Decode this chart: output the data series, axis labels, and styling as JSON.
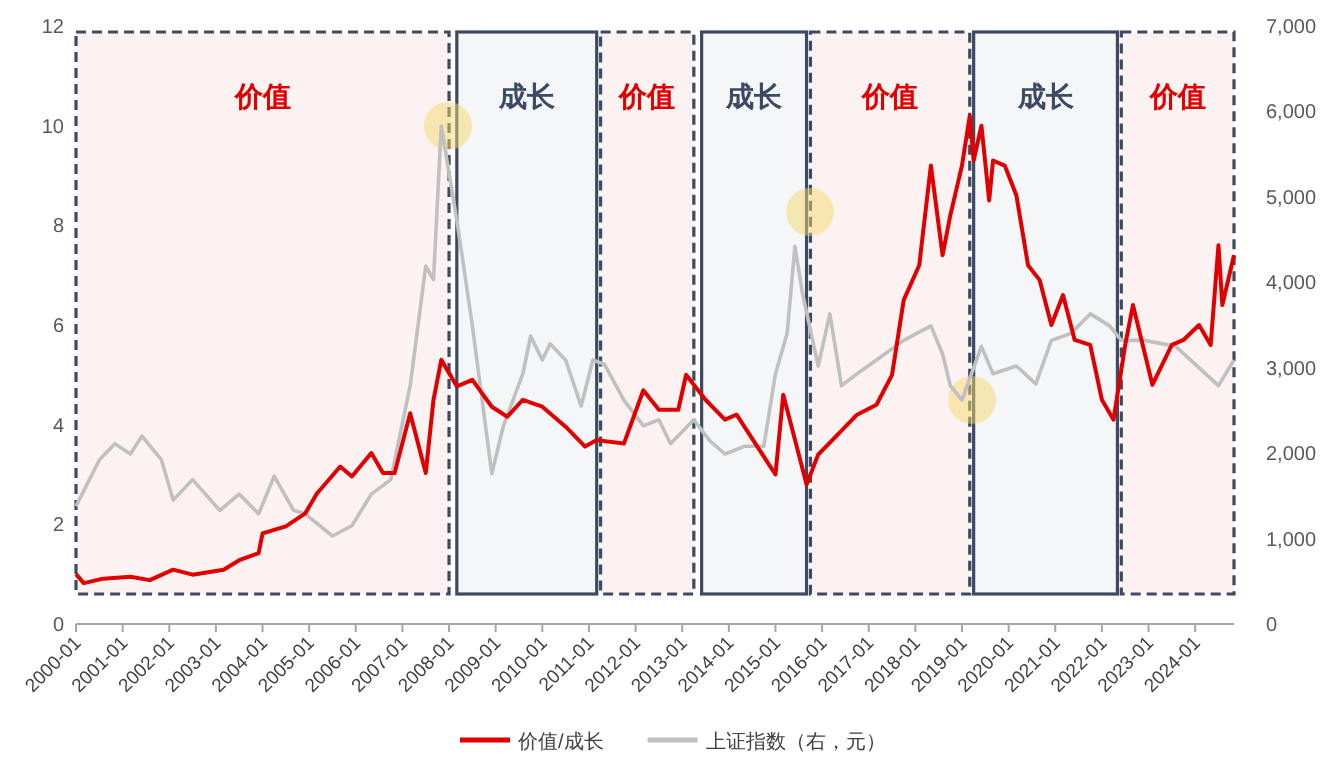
{
  "chart_data": {
    "type": "line",
    "xlim": [
      "2000-01",
      "2024-11"
    ],
    "xticks": [
      "2000-01",
      "2001-01",
      "2002-01",
      "2003-01",
      "2004-01",
      "2005-01",
      "2006-01",
      "2007-01",
      "2008-01",
      "2009-01",
      "2010-01",
      "2011-01",
      "2012-01",
      "2013-01",
      "2014-01",
      "2015-01",
      "2016-01",
      "2017-01",
      "2018-01",
      "2019-01",
      "2020-01",
      "2021-01",
      "2022-01",
      "2023-01",
      "2024-01"
    ],
    "ylim": [
      0,
      12
    ],
    "yticks": [
      0,
      2,
      4,
      6,
      8,
      10,
      12
    ],
    "y2lim": [
      0,
      7000
    ],
    "y2ticks": [
      0,
      {
        "value": 1000,
        "label": "1,000"
      },
      {
        "value": 2000,
        "label": "2,000"
      },
      {
        "value": 3000,
        "label": "3,000"
      },
      {
        "value": 4000,
        "label": "4,000"
      },
      {
        "value": 5000,
        "label": "5,000"
      },
      {
        "value": 6000,
        "label": "6,000"
      },
      {
        "value": 7000,
        "label": "7,000"
      }
    ],
    "grid": false,
    "legend": "bottom",
    "series": [
      {
        "name": "上证指数（右，元）",
        "color": "#c0c0c0",
        "axis": "y2",
        "x": [
          "2000-01",
          "2000-07",
          "2000-11",
          "2001-03",
          "2001-06",
          "2001-11",
          "2002-02",
          "2002-07",
          "2003-02",
          "2003-07",
          "2003-12",
          "2004-04",
          "2004-09",
          "2004-12",
          "2005-07",
          "2005-12",
          "2006-05",
          "2006-10",
          "2007-03",
          "2007-07",
          "2007-09",
          "2007-11",
          "2008-03",
          "2008-07",
          "2008-12",
          "2009-03",
          "2009-08",
          "2009-10",
          "2010-01",
          "2010-03",
          "2010-07",
          "2010-11",
          "2011-02",
          "2011-05",
          "2011-10",
          "2012-03",
          "2012-07",
          "2012-10",
          "2013-04",
          "2013-08",
          "2013-12",
          "2014-05",
          "2014-10",
          "2015-01",
          "2015-04",
          "2015-06",
          "2015-08",
          "2015-12",
          "2016-03",
          "2016-06",
          "2016-10",
          "2017-03",
          "2017-10",
          "2018-05",
          "2018-08",
          "2018-10",
          "2019-01",
          "2019-06",
          "2019-09",
          "2020-03",
          "2020-08",
          "2020-12",
          "2021-05",
          "2021-10",
          "2022-03",
          "2022-06",
          "2022-12",
          "2023-08",
          "2024-07",
          "2024-11"
        ],
        "values": [
          1380,
          1920,
          2110,
          1990,
          2200,
          1920,
          1450,
          1690,
          1330,
          1520,
          1290,
          1730,
          1330,
          1290,
          1030,
          1150,
          1520,
          1690,
          2790,
          4190,
          4030,
          5830,
          4730,
          3490,
          1760,
          2320,
          2930,
          3370,
          3090,
          3280,
          3090,
          2550,
          3090,
          3040,
          2620,
          2320,
          2390,
          2110,
          2390,
          2150,
          1990,
          2080,
          2080,
          2930,
          3400,
          4420,
          3860,
          3020,
          3630,
          2790,
          2930,
          3090,
          3320,
          3490,
          3160,
          2790,
          2620,
          3250,
          2930,
          3020,
          2810,
          3320,
          3400,
          3630,
          3490,
          3320,
          3320,
          3250,
          2790,
          3090
        ]
      },
      {
        "name": "价值/成长",
        "color": "#e00000",
        "x": [
          "2000-01",
          "2000-03",
          "2000-08",
          "2001-03",
          "2001-08",
          "2002-02",
          "2002-07",
          "2003-03",
          "2003-07",
          "2003-12",
          "2004-01",
          "2004-07",
          "2004-12",
          "2005-03",
          "2005-06",
          "2005-09",
          "2005-12",
          "2006-05",
          "2006-08",
          "2006-11",
          "2007-03",
          "2007-07",
          "2007-09",
          "2007-11",
          "2008-03",
          "2008-07",
          "2008-12",
          "2009-04",
          "2009-08",
          "2010-01",
          "2010-07",
          "2010-12",
          "2011-03",
          "2011-10",
          "2012-03",
          "2012-07",
          "2012-12",
          "2013-02",
          "2013-07",
          "2013-12",
          "2014-03",
          "2014-08",
          "2015-01",
          "2015-03",
          "2015-06",
          "2015-09",
          "2015-12",
          "2016-05",
          "2016-10",
          "2017-03",
          "2017-07",
          "2017-10",
          "2018-02",
          "2018-05",
          "2018-08",
          "2018-10",
          "2019-01",
          "2019-03",
          "2019-04",
          "2019-06",
          "2019-08",
          "2019-09",
          "2019-12",
          "2020-03",
          "2020-06",
          "2020-09",
          "2020-12",
          "2021-03",
          "2021-06",
          "2021-10",
          "2022-01",
          "2022-04",
          "2022-07",
          "2022-09",
          "2023-02",
          "2023-07",
          "2023-10",
          "2024-02",
          "2024-05",
          "2024-07",
          "2024-08",
          "2024-11"
        ],
        "values": [
          1.0,
          0.82,
          0.91,
          0.95,
          0.88,
          1.09,
          0.99,
          1.09,
          1.28,
          1.42,
          1.82,
          1.96,
          2.22,
          2.62,
          2.89,
          3.16,
          2.96,
          3.43,
          3.03,
          3.03,
          4.23,
          3.03,
          4.5,
          5.3,
          4.77,
          4.9,
          4.36,
          4.16,
          4.5,
          4.36,
          3.96,
          3.56,
          3.69,
          3.62,
          4.69,
          4.3,
          4.3,
          5.0,
          4.5,
          4.1,
          4.2,
          3.6,
          3.0,
          4.6,
          3.7,
          2.8,
          3.4,
          3.8,
          4.2,
          4.4,
          5.0,
          6.5,
          7.2,
          9.2,
          7.4,
          8.2,
          9.2,
          10.2,
          9.3,
          10.0,
          8.5,
          9.3,
          9.2,
          8.6,
          7.2,
          6.9,
          6.0,
          6.6,
          5.7,
          5.6,
          4.5,
          4.1,
          5.6,
          6.4,
          4.8,
          5.6,
          5.7,
          6.0,
          5.6,
          7.6,
          6.4,
          7.4
        ]
      }
    ],
    "bands": [
      {
        "axis": "x",
        "from": "2000-01",
        "to": "2008-01",
        "label": "价值",
        "color": "#e00000"
      },
      {
        "axis": "x",
        "from": "2008-03",
        "to": "2011-03",
        "label": "成长",
        "color": "#3d4a63"
      },
      {
        "axis": "x",
        "from": "2011-04",
        "to": "2013-04",
        "label": "价值",
        "color": "#e00000"
      },
      {
        "axis": "x",
        "from": "2013-06",
        "to": "2015-09",
        "label": "成长",
        "color": "#3d4a63"
      },
      {
        "axis": "x",
        "from": "2015-10",
        "to": "2019-03",
        "label": "价值",
        "color": "#e00000"
      },
      {
        "axis": "x",
        "from": "2019-04",
        "to": "2022-05",
        "label": "成长",
        "color": "#3d4a63"
      },
      {
        "axis": "x",
        "from": "2022-06",
        "to": "2024-11",
        "label": "价值",
        "color": "#e00000"
      }
    ]
  }
}
